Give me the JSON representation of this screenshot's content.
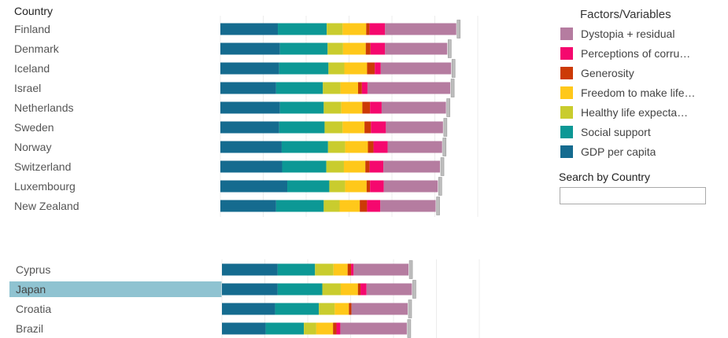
{
  "column_header": "Country",
  "legend": {
    "title": "Factors/Variables",
    "items": [
      {
        "label": "Dystopia + residual",
        "color": "#b57ca0"
      },
      {
        "label": "Perceptions of corru…",
        "color": "#f5086e"
      },
      {
        "label": "Generosity",
        "color": "#cc3a06"
      },
      {
        "label": "Freedom to make life…",
        "color": "#ffc81a"
      },
      {
        "label": "Healthy life expecta…",
        "color": "#c9cc2e"
      },
      {
        "label": "Social support",
        "color": "#0c9895"
      },
      {
        "label": "GDP per capita",
        "color": "#156b8f"
      }
    ]
  },
  "search": {
    "label": "Search by Country",
    "value": ""
  },
  "chart_data": {
    "type": "bar",
    "orientation": "horizontal",
    "stacked": true,
    "factors": [
      "GDP per capita",
      "Social support",
      "Healthy life expectancy",
      "Freedom to make life choices",
      "Generosity",
      "Perceptions of corruption",
      "Dystopia + residual"
    ],
    "colors": [
      "#156b8f",
      "#0c9895",
      "#c9cc2e",
      "#ffc81a",
      "#cc3a06",
      "#f5086e",
      "#b57ca0"
    ],
    "groups": [
      {
        "rows": [
          {
            "country": "Finland",
            "values": [
              1.34,
              1.14,
              0.37,
              0.55,
              0.08,
              0.36,
              1.66
            ]
          },
          {
            "country": "Denmark",
            "values": [
              1.39,
              1.11,
              0.36,
              0.53,
              0.11,
              0.34,
              1.45
            ]
          },
          {
            "country": "Iceland",
            "values": [
              1.37,
              1.15,
              0.37,
              0.53,
              0.18,
              0.14,
              1.64
            ]
          },
          {
            "country": "Israel",
            "values": [
              1.3,
              1.09,
              0.41,
              0.41,
              0.09,
              0.13,
              1.93
            ]
          },
          {
            "country": "Netherlands",
            "values": [
              1.39,
              1.02,
              0.41,
              0.49,
              0.18,
              0.27,
              1.5
            ]
          },
          {
            "country": "Sweden",
            "values": [
              1.37,
              1.06,
              0.42,
              0.51,
              0.15,
              0.35,
              1.33
            ]
          },
          {
            "country": "Norway",
            "values": [
              1.43,
              1.08,
              0.4,
              0.53,
              0.13,
              0.33,
              1.27
            ]
          },
          {
            "country": "Switzerland",
            "values": [
              1.44,
              1.03,
              0.41,
              0.5,
              0.1,
              0.32,
              1.32
            ]
          },
          {
            "country": "Luxembourg",
            "values": [
              1.56,
              0.98,
              0.37,
              0.5,
              0.08,
              0.32,
              1.26
            ]
          },
          {
            "country": "New Zealand",
            "values": [
              1.3,
              1.11,
              0.37,
              0.47,
              0.17,
              0.31,
              1.29
            ]
          }
        ]
      },
      {
        "rows": [
          {
            "country": "Cyprus",
            "values": [
              1.3,
              0.87,
              0.43,
              0.33,
              0.08,
              0.06,
              1.28
            ]
          },
          {
            "country": "Japan",
            "values": [
              1.3,
              1.04,
              0.43,
              0.4,
              0.06,
              0.14,
              1.06
            ]
          },
          {
            "country": "Croatia",
            "values": [
              1.24,
              1.02,
              0.37,
              0.33,
              0.06,
              0.0,
              1.31
            ]
          },
          {
            "country": "Brazil",
            "values": [
              1.02,
              0.89,
              0.29,
              0.39,
              0.08,
              0.09,
              1.55
            ]
          }
        ]
      }
    ],
    "highlighted_country": "Japan"
  }
}
